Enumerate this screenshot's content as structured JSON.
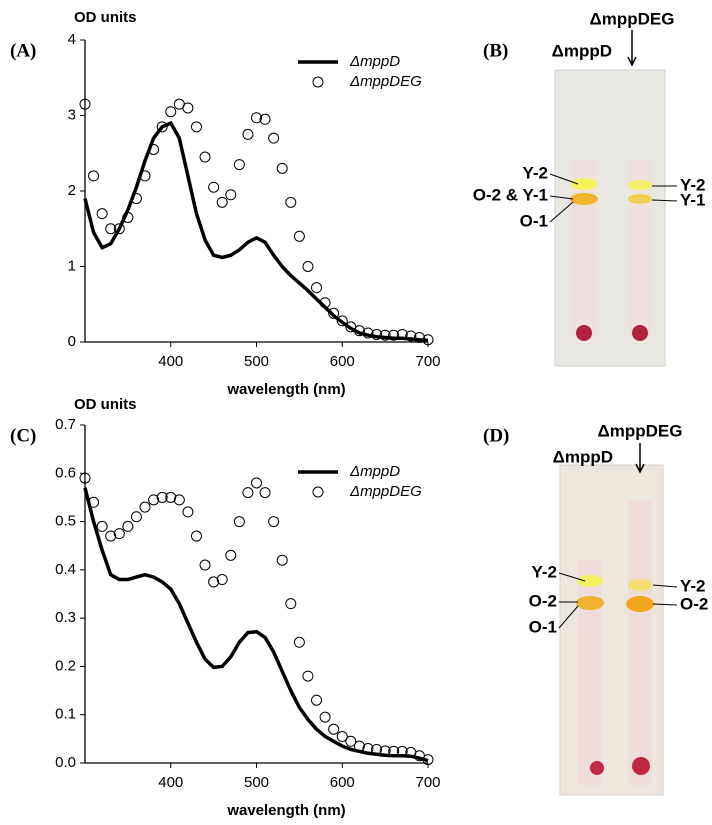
{
  "chart_data": [
    {
      "type": "line",
      "panel_label": "(A)",
      "y_label": "OD units",
      "x_label": "wavelength (nm)",
      "x": [
        300,
        310,
        320,
        330,
        340,
        350,
        360,
        370,
        380,
        390,
        400,
        410,
        420,
        430,
        440,
        450,
        460,
        470,
        480,
        490,
        500,
        510,
        520,
        530,
        540,
        550,
        560,
        570,
        580,
        590,
        600,
        610,
        620,
        630,
        640,
        650,
        660,
        670,
        680,
        690,
        700
      ],
      "xlim": [
        300,
        700
      ],
      "xticks": [
        400,
        500,
        600,
        700
      ],
      "ylim": [
        0,
        4
      ],
      "yticks": [
        0,
        1,
        2,
        3,
        4
      ],
      "legend": "upper right",
      "series": [
        {
          "name": "ΔmppD",
          "color": "#000000",
          "style": "line",
          "values": [
            1.9,
            1.45,
            1.25,
            1.3,
            1.5,
            1.75,
            2.05,
            2.4,
            2.7,
            2.85,
            2.9,
            2.7,
            2.2,
            1.7,
            1.35,
            1.15,
            1.12,
            1.15,
            1.22,
            1.32,
            1.38,
            1.32,
            1.15,
            1.0,
            0.88,
            0.78,
            0.68,
            0.57,
            0.46,
            0.35,
            0.26,
            0.18,
            0.12,
            0.09,
            0.07,
            0.06,
            0.05,
            0.05,
            0.04,
            0.03,
            0.02
          ]
        },
        {
          "name": "ΔmppDEG",
          "color": "#000000",
          "style": "markers",
          "values": [
            3.15,
            2.2,
            1.7,
            1.5,
            1.5,
            1.65,
            1.9,
            2.2,
            2.55,
            2.85,
            3.05,
            3.15,
            3.1,
            2.85,
            2.45,
            2.05,
            1.85,
            1.95,
            2.35,
            2.75,
            2.97,
            2.95,
            2.7,
            2.3,
            1.85,
            1.4,
            1.0,
            0.72,
            0.52,
            0.38,
            0.28,
            0.2,
            0.15,
            0.12,
            0.1,
            0.09,
            0.09,
            0.1,
            0.08,
            0.06,
            0.03
          ]
        }
      ]
    },
    {
      "type": "line",
      "panel_label": "(C)",
      "y_label": "OD units",
      "x_label": "wavelength (nm)",
      "x": [
        300,
        310,
        320,
        330,
        340,
        350,
        360,
        370,
        380,
        390,
        400,
        410,
        420,
        430,
        440,
        450,
        460,
        470,
        480,
        490,
        500,
        510,
        520,
        530,
        540,
        550,
        560,
        570,
        580,
        590,
        600,
        610,
        620,
        630,
        640,
        650,
        660,
        670,
        680,
        690,
        700
      ],
      "xlim": [
        300,
        700
      ],
      "xticks": [
        400,
        500,
        600,
        700
      ],
      "ylim": [
        0,
        0.7
      ],
      "yticks": [
        {
          "value": 0,
          "label": "0.0"
        },
        0.1,
        0.2,
        0.3,
        0.4,
        0.5,
        0.6,
        0.7
      ],
      "legend": "upper right",
      "series": [
        {
          "name": "ΔmppD",
          "color": "#000000",
          "style": "line",
          "values": [
            0.57,
            0.5,
            0.44,
            0.39,
            0.38,
            0.38,
            0.385,
            0.39,
            0.385,
            0.375,
            0.36,
            0.33,
            0.29,
            0.25,
            0.215,
            0.198,
            0.2,
            0.22,
            0.25,
            0.27,
            0.272,
            0.26,
            0.23,
            0.19,
            0.15,
            0.115,
            0.09,
            0.07,
            0.055,
            0.045,
            0.035,
            0.028,
            0.024,
            0.02,
            0.018,
            0.016,
            0.015,
            0.015,
            0.014,
            0.01,
            0.005
          ]
        },
        {
          "name": "ΔmppDEG",
          "color": "#000000",
          "style": "markers",
          "values": [
            0.59,
            0.54,
            0.49,
            0.47,
            0.475,
            0.49,
            0.51,
            0.53,
            0.545,
            0.55,
            0.55,
            0.545,
            0.52,
            0.47,
            0.41,
            0.375,
            0.38,
            0.43,
            0.5,
            0.56,
            0.58,
            0.56,
            0.5,
            0.42,
            0.33,
            0.25,
            0.18,
            0.13,
            0.095,
            0.07,
            0.055,
            0.045,
            0.035,
            0.03,
            0.028,
            0.025,
            0.024,
            0.024,
            0.022,
            0.015,
            0.007
          ]
        }
      ]
    }
  ],
  "tlc_panels": [
    {
      "panel_label": "(B)",
      "lane_left": "ΔmppD",
      "lane_right": "ΔmppDEG",
      "left_bands": [
        "Y-2",
        "O-2 & Y-1",
        "O-1"
      ],
      "right_bands": [
        "Y-2",
        "Y-1"
      ]
    },
    {
      "panel_label": "(D)",
      "lane_left": "ΔmppD",
      "lane_right": "ΔmppDEG",
      "left_bands": [
        "Y-2",
        "O-2",
        "O-1"
      ],
      "right_bands": [
        "Y-2",
        "O-2"
      ]
    }
  ]
}
